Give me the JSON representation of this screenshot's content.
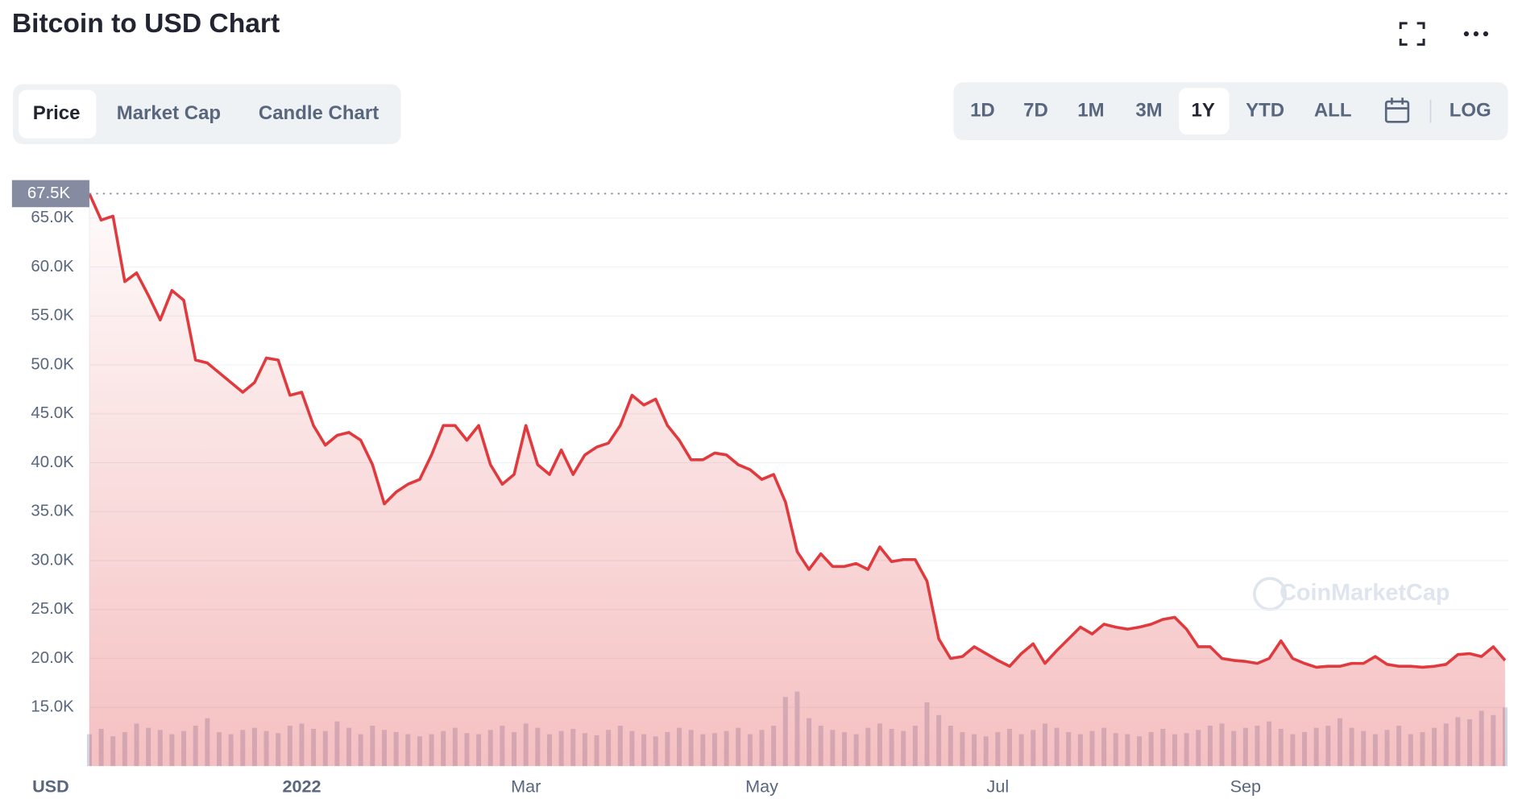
{
  "header": {
    "title": "Bitcoin to USD Chart"
  },
  "tabs": [
    "Price",
    "Market Cap",
    "Candle Chart"
  ],
  "ranges": [
    "1D",
    "7D",
    "1M",
    "3M",
    "1Y",
    "YTD",
    "ALL"
  ],
  "scale_button": "LOG",
  "watermark": "CoinMarketCap",
  "chart_data": {
    "type": "line",
    "axis_unit": "USD",
    "categories": [
      null,
      null,
      null,
      null,
      null,
      null,
      null,
      null,
      null,
      null,
      null,
      null,
      null,
      null,
      null,
      null,
      null,
      null,
      "2022",
      null,
      null,
      null,
      null,
      null,
      null,
      null,
      null,
      null,
      null,
      null,
      null,
      null,
      null,
      null,
      null,
      null,
      null,
      "Mar",
      null,
      null,
      null,
      null,
      null,
      null,
      null,
      null,
      null,
      null,
      null,
      null,
      null,
      null,
      null,
      null,
      null,
      null,
      null,
      "May",
      null,
      null,
      null,
      null,
      null,
      null,
      null,
      null,
      null,
      null,
      null,
      null,
      null,
      null,
      null,
      null,
      null,
      null,
      null,
      "Jul",
      null,
      null,
      null,
      null,
      null,
      null,
      null,
      null,
      null,
      null,
      null,
      null,
      null,
      null,
      null,
      null,
      null,
      null,
      null,
      null,
      "Sep",
      null,
      null,
      null,
      null,
      null,
      null,
      null,
      null,
      null,
      null,
      null,
      null,
      null,
      null,
      null,
      null,
      null,
      null,
      null,
      null,
      null,
      null
    ],
    "series": [
      {
        "name": "Price",
        "color": "#e03a3e",
        "values": [
          67500,
          64800,
          65200,
          58500,
          59400,
          57100,
          54600,
          57600,
          56600,
          50500,
          50200,
          49200,
          48200,
          47200,
          48200,
          50700,
          50500,
          46900,
          47200,
          43800,
          41800,
          42800,
          43100,
          42300,
          39800,
          35800,
          37000,
          37800,
          38300,
          40800,
          43800,
          43800,
          42300,
          43800,
          39800,
          37800,
          38800,
          43800,
          39800,
          38800,
          41300,
          38800,
          40800,
          41600,
          42000,
          43800,
          46900,
          45900,
          46500,
          43800,
          42300,
          40300,
          40300,
          41000,
          40800,
          39800,
          39300,
          38300,
          38800,
          36000,
          30900,
          29100,
          30700,
          29400,
          29400,
          29700,
          29100,
          31400,
          29900,
          30100,
          30100,
          27900,
          22000,
          20000,
          20200,
          21200,
          20500,
          19800,
          19200,
          20500,
          21500,
          19500,
          20800,
          22000,
          23200,
          22500,
          23500,
          23200,
          23000,
          23200,
          23500,
          24000,
          24200,
          23000,
          21200,
          21200,
          20000,
          19800,
          19700,
          19500,
          20000,
          21800,
          20000,
          19500,
          19100,
          19200,
          19200,
          19500,
          19500,
          20200,
          19400,
          19200,
          19200,
          19100,
          19200,
          19400,
          20400,
          20500,
          20200,
          21200,
          19800
        ]
      },
      {
        "name": "Volume",
        "color": "#cfd6e4",
        "values": [
          30,
          35,
          28,
          32,
          40,
          36,
          34,
          30,
          33,
          38,
          45,
          32,
          30,
          34,
          36,
          33,
          31,
          38,
          40,
          35,
          33,
          42,
          36,
          30,
          38,
          34,
          32,
          30,
          28,
          30,
          33,
          36,
          31,
          30,
          34,
          38,
          32,
          40,
          36,
          30,
          33,
          35,
          31,
          29,
          34,
          38,
          33,
          30,
          28,
          32,
          36,
          34,
          30,
          31,
          33,
          36,
          30,
          34,
          38,
          65,
          70,
          45,
          38,
          34,
          32,
          30,
          36,
          40,
          35,
          33,
          38,
          60,
          48,
          38,
          32,
          30,
          28,
          32,
          35,
          30,
          34,
          40,
          36,
          32,
          30,
          33,
          36,
          31,
          30,
          28,
          32,
          35,
          30,
          31,
          34,
          38,
          40,
          33,
          36,
          38,
          42,
          35,
          30,
          32,
          36,
          38,
          45,
          36,
          33,
          30,
          34,
          38,
          30,
          32,
          36,
          40,
          46,
          44,
          52,
          48,
          55
        ],
        "vlim": [
          0,
          100
        ]
      }
    ],
    "ylim": [
      9000,
      69000
    ],
    "yticks": [
      {
        "value": 15000,
        "label": "15.0K"
      },
      {
        "value": 20000,
        "label": "20.0K"
      },
      {
        "value": 25000,
        "label": "25.0K"
      },
      {
        "value": 30000,
        "label": "30.0K"
      },
      {
        "value": 35000,
        "label": "35.0K"
      },
      {
        "value": 40000,
        "label": "40.0K"
      },
      {
        "value": 45000,
        "label": "45.0K"
      },
      {
        "value": 50000,
        "label": "50.0K"
      },
      {
        "value": 55000,
        "label": "55.0K"
      },
      {
        "value": 60000,
        "label": "60.0K"
      },
      {
        "value": 65000,
        "label": "65.0K"
      }
    ],
    "reference_line": {
      "value": 67500,
      "label": "67.5K"
    },
    "grid": true
  }
}
